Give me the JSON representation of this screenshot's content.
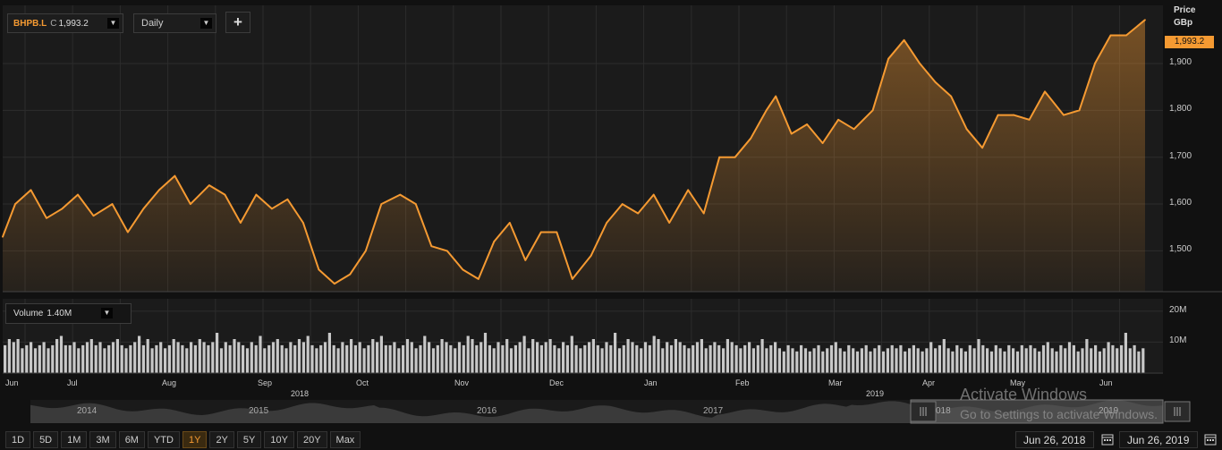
{
  "toolbar": {
    "symbol": "BHPB.L",
    "close_type": "C",
    "last_value": "1,993.2",
    "interval": "Daily",
    "add_label": "+"
  },
  "volume_panel": {
    "label": "Volume",
    "value": "1.40M",
    "axis_ticks": [
      "20M",
      "10M"
    ]
  },
  "price_axis": {
    "title_line1": "Price",
    "title_line2": "GBp",
    "last_badge": "1,993.2"
  },
  "navigator": {
    "years": [
      "2014",
      "2015",
      "2016",
      "2017",
      "018",
      "2019"
    ]
  },
  "range_buttons": [
    "1D",
    "5D",
    "1M",
    "3M",
    "6M",
    "YTD",
    "1Y",
    "2Y",
    "5Y",
    "10Y",
    "20Y",
    "Max"
  ],
  "active_range": "1Y",
  "dates": {
    "start": "Jun 26, 2018",
    "end": "Jun 26, 2019"
  },
  "watermark": {
    "title": "Activate Windows",
    "subtitle": "Go to Settings to activate Windows."
  },
  "colors": {
    "line": "#f59a32",
    "volume_bars": "#c8c8c8",
    "background": "#111111",
    "grid": "#2c2c2c"
  },
  "chart_data": [
    {
      "type": "area",
      "series_kind": "price",
      "x_tick_labels": [
        "Jun",
        "Jul",
        "Aug",
        "Sep",
        "Oct",
        "Nov",
        "Dec",
        "Jan",
        "Feb",
        "Mar",
        "Apr",
        "May",
        "Jun"
      ],
      "year_labels": [
        "2018",
        "2019"
      ],
      "y_ticks": [
        1500,
        1600,
        1700,
        1800,
        1900
      ],
      "y_tick_labels": [
        "1,500",
        "1,600",
        "1,700",
        "1,800",
        "1,900"
      ],
      "ylim": [
        1413,
        2024
      ],
      "grid": true,
      "x": [
        "2018-06-26",
        "2018-06-30",
        "2018-07-05",
        "2018-07-10",
        "2018-07-15",
        "2018-07-20",
        "2018-07-25",
        "2018-07-31",
        "2018-08-05",
        "2018-08-10",
        "2018-08-15",
        "2018-08-20",
        "2018-08-25",
        "2018-08-31",
        "2018-09-05",
        "2018-09-10",
        "2018-09-15",
        "2018-09-20",
        "2018-09-25",
        "2018-09-30",
        "2018-10-05",
        "2018-10-10",
        "2018-10-15",
        "2018-10-20",
        "2018-10-25",
        "2018-10-31",
        "2018-11-05",
        "2018-11-10",
        "2018-11-15",
        "2018-11-20",
        "2018-11-25",
        "2018-11-30",
        "2018-12-05",
        "2018-12-10",
        "2018-12-15",
        "2018-12-20",
        "2018-12-25",
        "2018-12-31",
        "2019-01-05",
        "2019-01-10",
        "2019-01-15",
        "2019-01-20",
        "2019-01-25",
        "2019-01-31",
        "2019-02-05",
        "2019-02-10",
        "2019-02-15",
        "2019-02-20",
        "2019-02-25",
        "2019-02-28",
        "2019-03-05",
        "2019-03-10",
        "2019-03-15",
        "2019-03-20",
        "2019-03-25",
        "2019-03-31",
        "2019-04-05",
        "2019-04-10",
        "2019-04-15",
        "2019-04-20",
        "2019-04-25",
        "2019-04-30",
        "2019-05-05",
        "2019-05-10",
        "2019-05-15",
        "2019-05-20",
        "2019-05-25",
        "2019-05-31",
        "2019-06-05",
        "2019-06-10",
        "2019-06-15",
        "2019-06-20",
        "2019-06-26"
      ],
      "values": [
        1530,
        1600,
        1630,
        1570,
        1590,
        1620,
        1575,
        1600,
        1540,
        1590,
        1630,
        1660,
        1600,
        1640,
        1620,
        1560,
        1620,
        1590,
        1610,
        1560,
        1460,
        1430,
        1450,
        1500,
        1600,
        1620,
        1600,
        1510,
        1500,
        1460,
        1440,
        1520,
        1560,
        1480,
        1540,
        1540,
        1440,
        1490,
        1560,
        1600,
        1580,
        1620,
        1560,
        1630,
        1580,
        1700,
        1700,
        1740,
        1800,
        1830,
        1750,
        1770,
        1730,
        1780,
        1760,
        1800,
        1910,
        1950,
        1900,
        1860,
        1830,
        1760,
        1720,
        1790,
        1790,
        1780,
        1840,
        1790,
        1800,
        1900,
        1960,
        1960,
        1993
      ]
    },
    {
      "type": "bar",
      "series_kind": "volume",
      "y_ticks": [
        10,
        20
      ],
      "y_tick_labels": [
        "10M",
        "20M"
      ],
      "ylim": [
        0,
        24
      ],
      "unit": "M",
      "values": [
        9,
        11,
        10,
        11,
        8,
        9,
        10,
        8,
        9,
        10,
        8,
        9,
        11,
        12,
        9,
        9,
        10,
        8,
        9,
        10,
        11,
        9,
        10,
        8,
        9,
        10,
        11,
        9,
        8,
        9,
        10,
        12,
        9,
        11,
        8,
        9,
        10,
        8,
        9,
        11,
        10,
        9,
        8,
        10,
        9,
        11,
        10,
        9,
        10,
        13,
        8,
        10,
        9,
        11,
        10,
        9,
        8,
        10,
        9,
        12,
        8,
        9,
        10,
        11,
        9,
        8,
        10,
        9,
        11,
        10,
        12,
        9,
        8,
        9,
        10,
        13,
        9,
        8,
        10,
        9,
        11,
        9,
        10,
        8,
        9,
        11,
        10,
        12,
        9,
        9,
        10,
        8,
        9,
        11,
        10,
        8,
        9,
        12,
        10,
        8,
        9,
        11,
        10,
        9,
        8,
        10,
        9,
        12,
        11,
        9,
        10,
        13,
        9,
        8,
        10,
        9,
        11,
        8,
        9,
        10,
        12,
        8,
        11,
        10,
        9,
        10,
        11,
        9,
        8,
        10,
        9,
        12,
        9,
        8,
        9,
        10,
        11,
        9,
        8,
        10,
        9,
        13,
        8,
        9,
        11,
        10,
        9,
        8,
        10,
        9,
        12,
        11,
        8,
        10,
        9,
        11,
        10,
        9,
        8,
        9,
        10,
        11,
        8,
        9,
        10,
        9,
        8,
        11,
        10,
        9,
        8,
        9,
        10,
        8,
        9,
        11,
        8,
        9,
        10,
        8,
        7,
        9,
        8,
        7,
        9,
        8,
        7,
        8,
        9,
        7,
        8,
        9,
        10,
        8,
        7,
        9,
        8,
        7,
        8,
        9,
        7,
        8,
        9,
        7,
        8,
        9,
        8,
        9,
        7,
        8,
        9,
        8,
        7,
        8,
        10,
        8,
        9,
        11,
        8,
        7,
        9,
        8,
        7,
        9,
        8,
        11,
        9,
        8,
        7,
        9,
        8,
        7,
        9,
        8,
        7,
        9,
        8,
        9,
        8,
        7,
        9,
        10,
        8,
        7,
        9,
        8,
        10,
        9,
        7,
        8,
        11,
        8,
        9,
        7,
        8,
        10,
        9,
        8,
        9,
        13,
        8,
        9,
        7,
        8
      ]
    }
  ]
}
